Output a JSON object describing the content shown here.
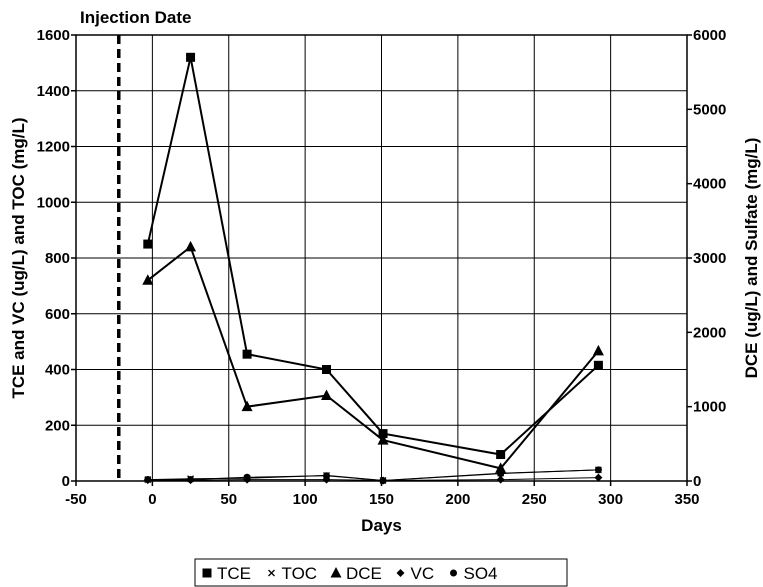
{
  "chart_data": {
    "type": "line",
    "annotation": "Injection Date",
    "annotation_x": -22,
    "xlabel": "Days",
    "ylabel_left": "TCE and VC (ug/L) and TOC (mg/L)",
    "ylabel_right": "DCE (ug/L) and Sulfate (mg/L)",
    "xlim": [
      -50,
      350
    ],
    "xticks": [
      -50,
      0,
      50,
      100,
      150,
      200,
      250,
      300,
      350
    ],
    "ylim_left": [
      0,
      1600
    ],
    "yticks_left": [
      0,
      200,
      400,
      600,
      800,
      1000,
      1200,
      1400,
      1600
    ],
    "ylim_right": [
      0,
      6000
    ],
    "yticks_right": [
      0,
      1000,
      2000,
      3000,
      4000,
      5000,
      6000
    ],
    "grid": true,
    "legend_position": "bottom-center",
    "series": [
      {
        "name": "TCE",
        "axis": "left",
        "marker": "square",
        "line": "heavy",
        "x": [
          -3,
          25,
          62,
          114,
          151,
          228,
          292
        ],
        "y": [
          850,
          1520,
          455,
          400,
          170,
          95,
          415
        ]
      },
      {
        "name": "TOC",
        "axis": "left",
        "marker": "x",
        "line": "light",
        "x": [
          -3,
          25,
          62,
          114,
          151,
          228,
          292
        ],
        "y": [
          5,
          8,
          10,
          20,
          2,
          28,
          40
        ]
      },
      {
        "name": "DCE",
        "axis": "right",
        "marker": "triangle",
        "line": "heavy",
        "x": [
          -3,
          25,
          62,
          114,
          151,
          228,
          292
        ],
        "y": [
          2700,
          3150,
          1000,
          1150,
          550,
          170,
          1750
        ]
      },
      {
        "name": "VC",
        "axis": "left",
        "marker": "diamond",
        "line": "light",
        "x": [
          -3,
          25,
          62,
          114,
          151,
          228,
          292
        ],
        "y": [
          3,
          3,
          5,
          5,
          2,
          5,
          12
        ]
      },
      {
        "name": "SO4",
        "axis": "right",
        "marker": "circle",
        "line": "light",
        "x": [
          -3,
          25,
          62,
          114,
          151,
          228,
          292
        ],
        "y": [
          20,
          20,
          50,
          70,
          5,
          100,
          150
        ]
      }
    ]
  }
}
